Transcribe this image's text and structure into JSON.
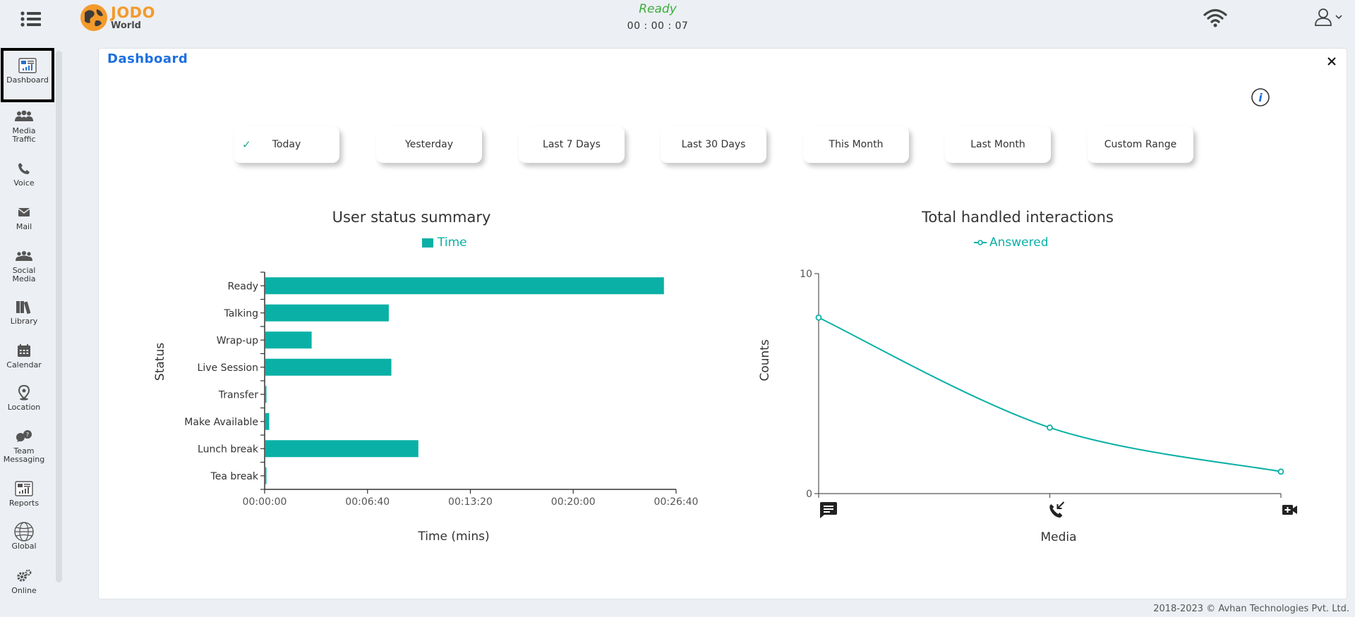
{
  "header": {
    "logo_main": "JODO",
    "logo_sub": "World",
    "status": "Ready",
    "timer": "00 : 00 : 07"
  },
  "sidebar": {
    "items": [
      {
        "label": "Dashboard",
        "icon": "dashboard-icon"
      },
      {
        "label": "Media Traffic",
        "icon": "media-traffic-icon"
      },
      {
        "label": "Voice",
        "icon": "phone-icon"
      },
      {
        "label": "Mail",
        "icon": "mail-icon"
      },
      {
        "label": "Social Media",
        "icon": "social-media-icon"
      },
      {
        "label": "Library",
        "icon": "library-icon"
      },
      {
        "label": "Calendar",
        "icon": "calendar-icon"
      },
      {
        "label": "Location",
        "icon": "location-icon"
      },
      {
        "label": "Team Messaging",
        "icon": "team-messaging-icon"
      },
      {
        "label": "Reports",
        "icon": "reports-icon"
      },
      {
        "label": "Global",
        "icon": "globe-icon"
      },
      {
        "label": "Online",
        "icon": "gears-icon"
      }
    ]
  },
  "panel": {
    "title": "Dashboard",
    "ranges": [
      {
        "label": "Today",
        "selected": true
      },
      {
        "label": "Yesterday",
        "selected": false
      },
      {
        "label": "Last 7 Days",
        "selected": false
      },
      {
        "label": "Last 30 Days",
        "selected": false
      },
      {
        "label": "This Month",
        "selected": false
      },
      {
        "label": "Last Month",
        "selected": false
      },
      {
        "label": "Custom Range",
        "selected": false
      }
    ]
  },
  "chart_data": [
    {
      "type": "bar",
      "orientation": "horizontal",
      "title": "User status summary",
      "legend": [
        "Time"
      ],
      "legend_placement": "top-center",
      "xlabel": "Time (mins)",
      "ylabel": "Status",
      "categories": [
        "Ready",
        "Talking",
        "Wrap-up",
        "Live Session",
        "Transfer",
        "Make Available",
        "Lunch break",
        "Tea break"
      ],
      "series": [
        {
          "name": "Time",
          "values_seconds": [
            1550,
            480,
            180,
            490,
            2,
            15,
            595,
            2
          ]
        }
      ],
      "xlim_seconds": [
        0,
        1600
      ],
      "x_ticks": [
        "00:00:00",
        "00:06:40",
        "00:13:20",
        "00:20:00",
        "00:26:40"
      ],
      "color": "#0ab0a6"
    },
    {
      "type": "line",
      "title": "Total handled interactions",
      "legend": [
        "Answered"
      ],
      "legend_placement": "top-center",
      "xlabel": "Media",
      "ylabel": "Counts",
      "categories": [
        "chat",
        "voice",
        "video"
      ],
      "category_icons": [
        "chat-icon",
        "incoming-call-icon",
        "video-call-icon"
      ],
      "series": [
        {
          "name": "Answered",
          "values": [
            8,
            3,
            1
          ]
        }
      ],
      "ylim": [
        0,
        10
      ],
      "y_ticks": [
        "0",
        "10"
      ],
      "color": "#0ab0a6"
    }
  ],
  "footer": {
    "copyright": "2018-2023 © Avhan Technologies Pvt. Ltd."
  }
}
